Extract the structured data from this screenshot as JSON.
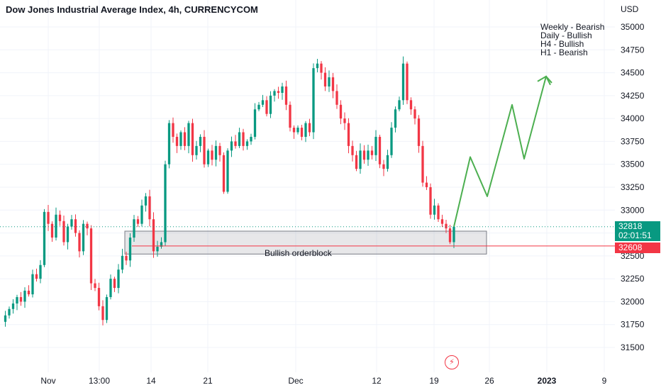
{
  "header": {
    "title": "Dow Jones Industrial Average Index, 4h, CURRENCYCOM",
    "currency": "USD"
  },
  "notes": [
    "Weekly - Bearish",
    "Daily - Bullish",
    "H4 - Bullish",
    "H1 - Bearish"
  ],
  "price_tags": {
    "current_price": "32818",
    "countdown": "02:01:51",
    "level_price": "32608"
  },
  "orderblock": {
    "label": "Bullish orderblock",
    "top": 32770,
    "bottom": 32520,
    "level": 32608
  },
  "colors": {
    "up": "#089981",
    "down": "#f23645",
    "projection": "#4caf50",
    "grid": "#f0f3fa"
  },
  "icons": {
    "alert": "lightning-icon"
  },
  "chart_data": {
    "type": "candlestick",
    "ylim": [
      31300,
      35250
    ],
    "yticks": [
      31500,
      31750,
      32000,
      32250,
      32500,
      32750,
      33000,
      33250,
      33500,
      33750,
      34000,
      34250,
      34500,
      34750,
      35000
    ],
    "xticks": [
      "Nov",
      "13:00",
      "14",
      "21",
      "Dec",
      "12",
      "19",
      "26",
      "2023",
      "9"
    ],
    "series_close": [
      31780,
      31850,
      31920,
      31980,
      32050,
      32000,
      32120,
      32080,
      32300,
      32250,
      32400,
      32980,
      32850,
      32700,
      32950,
      32880,
      32650,
      32820,
      32900,
      32750,
      32550,
      32850,
      32800,
      32200,
      32150,
      31950,
      31800,
      32050,
      32250,
      32150,
      32350,
      32500,
      32450,
      32700,
      32900,
      32850,
      33050,
      33150,
      32900,
      32550,
      32600,
      32650,
      33500,
      33950,
      33800,
      33700,
      33850,
      33700,
      33950,
      33600,
      33700,
      33800,
      33500,
      33650,
      33550,
      33700,
      33600,
      33200,
      33650,
      33750,
      33700,
      33850,
      33700,
      33750,
      33800,
      34100,
      34150,
      34200,
      34050,
      34250,
      34300,
      34280,
      34350,
      34150,
      33900,
      33850,
      33900,
      33800,
      33950,
      33850,
      34550,
      34600,
      34500,
      34350,
      34450,
      34300,
      34150,
      34000,
      33950,
      33700,
      33600,
      33450,
      33650,
      33550,
      33650,
      33600,
      33800,
      33500,
      33450,
      33600,
      33900,
      34100,
      34200,
      34600,
      34200,
      34100,
      34000,
      33700,
      33300,
      33250,
      32950,
      33050,
      32900,
      32850,
      32800,
      32650,
      32818
    ],
    "projection": [
      32818,
      33580,
      33150,
      34150,
      33560,
      34460,
      34390
    ],
    "annotations": [
      "Bullish orderblock",
      "Weekly - Bearish",
      "Daily - Bullish",
      "H4 - Bullish",
      "H1 - Bearish"
    ]
  }
}
